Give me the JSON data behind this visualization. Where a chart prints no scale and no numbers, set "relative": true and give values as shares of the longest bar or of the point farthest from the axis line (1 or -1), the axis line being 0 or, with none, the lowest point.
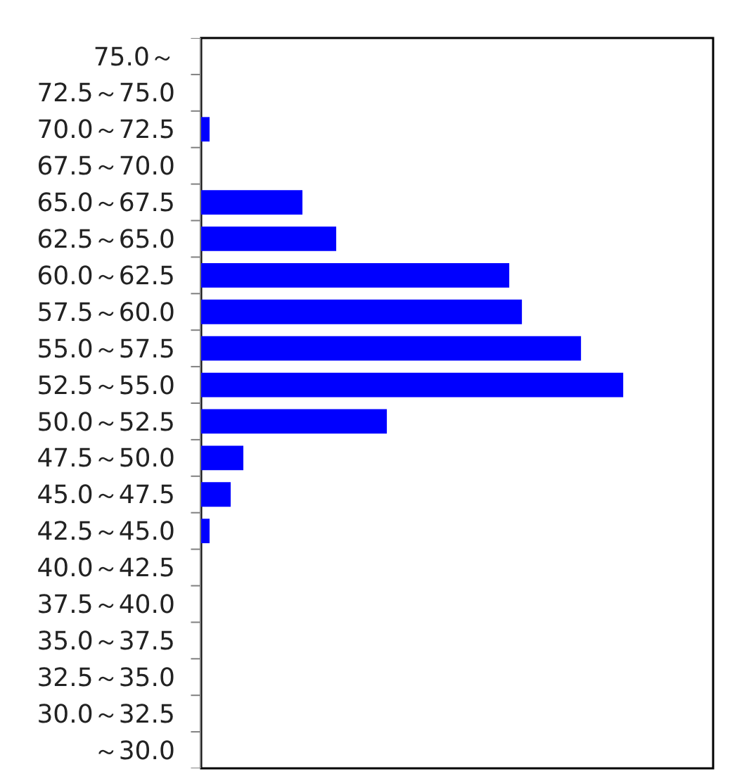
{
  "chart_data": {
    "type": "bar",
    "orientation": "horizontal",
    "relative": true,
    "categories": [
      "75.0～",
      "72.5～75.0",
      "70.0～72.5",
      "67.5～70.0",
      "65.0～67.5",
      "62.5～65.0",
      "60.0～62.5",
      "57.5～60.0",
      "55.0～57.5",
      "52.5～55.0",
      "50.0～52.5",
      "47.5～50.0",
      "45.0～47.5",
      "42.5～45.0",
      "40.0～42.5",
      "37.5～40.0",
      "35.0～37.5",
      "32.5～35.0",
      "30.0～32.5",
      "～30.0"
    ],
    "values": [
      0,
      0,
      0.02,
      0,
      0.24,
      0.32,
      0.73,
      0.76,
      0.9,
      1,
      0.44,
      0.1,
      0.07,
      0.02,
      0,
      0,
      0,
      0,
      0,
      0
    ],
    "color": "#0000ff"
  }
}
